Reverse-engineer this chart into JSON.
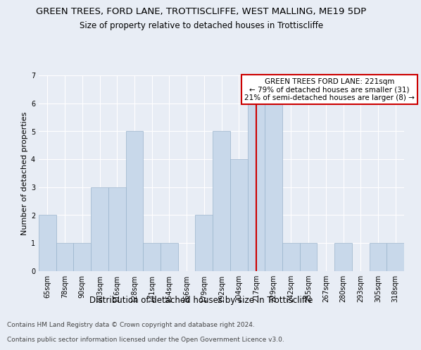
{
  "title": "GREEN TREES, FORD LANE, TROTTISCLIFFE, WEST MALLING, ME19 5DP",
  "subtitle": "Size of property relative to detached houses in Trottiscliffe",
  "xlabel": "Distribution of detached houses by size in Trottiscliffe",
  "ylabel": "Number of detached properties",
  "categories": [
    "65sqm",
    "78sqm",
    "90sqm",
    "103sqm",
    "116sqm",
    "128sqm",
    "141sqm",
    "154sqm",
    "166sqm",
    "179sqm",
    "192sqm",
    "204sqm",
    "217sqm",
    "229sqm",
    "242sqm",
    "255sqm",
    "267sqm",
    "280sqm",
    "293sqm",
    "305sqm",
    "318sqm"
  ],
  "values": [
    2,
    1,
    1,
    3,
    3,
    5,
    1,
    1,
    0,
    2,
    5,
    4,
    6,
    6,
    1,
    1,
    0,
    1,
    0,
    1,
    1
  ],
  "bar_color": "#c8d8ea",
  "bar_edge_color": "#9ab4cc",
  "highlight_index": 12,
  "highlight_line_color": "#cc0000",
  "annotation_line1": "GREEN TREES FORD LANE: 221sqm",
  "annotation_line2": "← 79% of detached houses are smaller (31)",
  "annotation_line3": "21% of semi-detached houses are larger (8) →",
  "annotation_box_facecolor": "#ffffff",
  "annotation_box_edgecolor": "#cc0000",
  "ylim": [
    0,
    7
  ],
  "yticks": [
    0,
    1,
    2,
    3,
    4,
    5,
    6,
    7
  ],
  "background_color": "#e8edf5",
  "grid_color": "#ffffff",
  "footer_line1": "Contains HM Land Registry data © Crown copyright and database right 2024.",
  "footer_line2": "Contains public sector information licensed under the Open Government Licence v3.0.",
  "title_fontsize": 9.5,
  "subtitle_fontsize": 8.5,
  "xlabel_fontsize": 8.5,
  "ylabel_fontsize": 8,
  "tick_fontsize": 7,
  "annot_fontsize": 7.5,
  "footer_fontsize": 6.5
}
